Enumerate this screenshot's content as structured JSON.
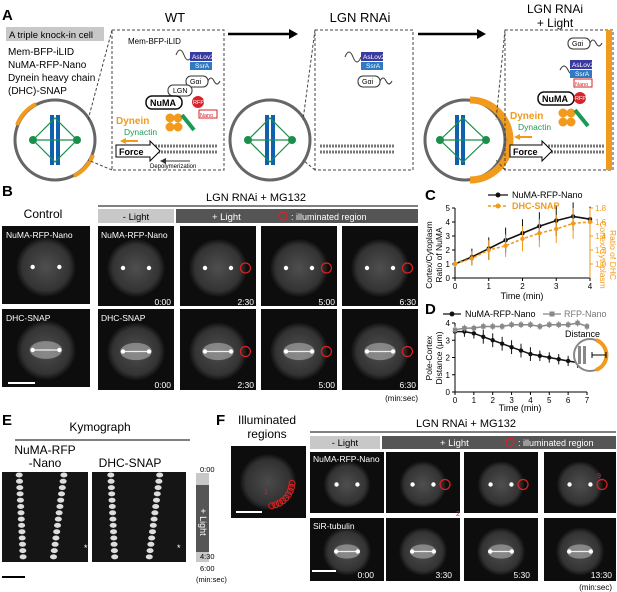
{
  "panelA": {
    "letter": "A",
    "box_title": "A triple knock-in cell",
    "lines": [
      "Mem-BFP-iLID",
      "NuMA-RFP-Nano",
      "Dynein heavy chain",
      "(DHC)-SNAP"
    ],
    "wt_title": "WT",
    "rnai_title": "LGN RNAi",
    "light_title": [
      "LGN RNAi",
      "+ Light"
    ],
    "mem": "Mem-BFP-iLID",
    "aslov2": "AsLov2",
    "ssra": "SsrA",
    "gai": "Gαi",
    "lgn": "LGN",
    "numa": "NuMA",
    "rfp": "RFP",
    "nano": "Nano",
    "dynein": "Dynein",
    "dynactin": "Dynactin",
    "force": "Force",
    "depol": "Depolymerization",
    "colors": {
      "dynein": "#f29a1c",
      "dynactin": "#1a9a55",
      "aslov2": "#3a3aa0",
      "ssra": "#2f7ac0",
      "rfp": "#d9222a",
      "spindle": "#1060b0",
      "chromo": "#1a8f4a"
    }
  },
  "panelB": {
    "letter": "B",
    "control": "Control",
    "header": "LGN RNAi + MG132",
    "minus_light": "- Light",
    "plus_light": "+ Light",
    "illum": ": illuminated region",
    "row1_label": "NuMA-RFP-Nano",
    "row2_label": "DHC-SNAP",
    "times": [
      "0:00",
      "2:30",
      "5:00",
      "6:30"
    ],
    "unit": "(min:sec)"
  },
  "panelC": {
    "letter": "C",
    "legend": [
      "NuMA-RFP-Nano",
      "DHC-SNAP"
    ],
    "ylabel_left": [
      "Cortex/Cytoplasm",
      "Ratio of NuMA"
    ],
    "ylabel_right": [
      "Cortex/Cytoplasm",
      "Ratio of DHC"
    ],
    "xlabel": "Time (min)"
  },
  "panelD": {
    "letter": "D",
    "legend": [
      "NuMA-RFP-Nano",
      "RFP-Nano"
    ],
    "ylabel": [
      "Pole-Cortex",
      "Distance (μm)"
    ],
    "xlabel": "Time (min)",
    "distance": "Distance"
  },
  "panelE": {
    "letter": "E",
    "title": "Kymograph",
    "label1": [
      "NuMA-RFP",
      "-Nano"
    ],
    "label2": "DHC-SNAP",
    "t_top": "0:00",
    "t_mid": "4:30",
    "t_bot": "6:00",
    "plus_light": "+ Light",
    "unit": "(min:sec)",
    "asterisk": "*"
  },
  "panelF": {
    "letter": "F",
    "illum_title": [
      "Illuminated",
      "regions"
    ],
    "header": "LGN RNAi + MG132",
    "minus_light": "- Light",
    "plus_light": "+ Light",
    "illum": ": illuminated region",
    "row1_label": "NuMA-RFP-Nano",
    "row2_label": "SiR-tubulin",
    "times": [
      "0:00",
      "3:30",
      "5:30",
      "13:30"
    ],
    "region_nums": [
      "1",
      "2",
      "9"
    ],
    "unit": "(min:sec)"
  },
  "chart_data": [
    {
      "type": "line",
      "panel": "C",
      "x": [
        0,
        0.5,
        1,
        1.5,
        2,
        2.5,
        3,
        3.5,
        4
      ],
      "xlim": [
        0,
        4
      ],
      "ylim_left": [
        0,
        5
      ],
      "yticks_left": [
        0,
        1,
        2,
        3,
        4,
        5
      ],
      "ylim_right": [
        0.8,
        1.8
      ],
      "yticks_right": [
        1.0,
        1.2,
        1.4,
        1.6,
        1.8
      ],
      "series": [
        {
          "name": "NuMA-RFP-Nano",
          "axis": "left",
          "color": "#111111",
          "values": [
            1.0,
            1.5,
            2.1,
            2.7,
            3.2,
            3.7,
            4.1,
            4.4,
            4.2
          ],
          "err": [
            0.2,
            0.6,
            0.8,
            0.9,
            1.0,
            1.0,
            1.1,
            1.0,
            0.9
          ]
        },
        {
          "name": "DHC-SNAP",
          "axis": "left",
          "color": "#f29a1c",
          "values": [
            1.0,
            1.4,
            2.0,
            2.3,
            2.8,
            3.2,
            3.5,
            3.9,
            4.0
          ],
          "err": [
            0.2,
            0.5,
            0.7,
            0.8,
            0.9,
            1.0,
            1.0,
            1.1,
            1.0
          ]
        }
      ]
    },
    {
      "type": "line",
      "panel": "D",
      "x": [
        0,
        0.5,
        1,
        1.5,
        2,
        2.5,
        3,
        3.5,
        4,
        4.5,
        5,
        5.5,
        6,
        6.5,
        7
      ],
      "xlim": [
        0,
        7
      ],
      "ylim": [
        0,
        4
      ],
      "yticks": [
        0,
        1,
        2,
        3,
        4
      ],
      "series": [
        {
          "name": "NuMA-RFP-Nano",
          "color": "#111111",
          "values": [
            3.5,
            3.5,
            3.4,
            3.2,
            3.0,
            2.8,
            2.6,
            2.4,
            2.2,
            2.1,
            2.0,
            1.9,
            1.8,
            1.7,
            1.6
          ],
          "err": [
            0.3,
            0.3,
            0.3,
            0.4,
            0.4,
            0.4,
            0.4,
            0.4,
            0.4,
            0.3,
            0.3,
            0.3,
            0.3,
            0.3,
            0.2
          ]
        },
        {
          "name": "RFP-Nano",
          "color": "#888888",
          "values": [
            3.6,
            3.7,
            3.7,
            3.8,
            3.8,
            3.8,
            3.9,
            3.9,
            3.9,
            3.8,
            3.9,
            3.9,
            3.9,
            4.0,
            3.8
          ],
          "err": [
            0.2,
            0.2,
            0.2,
            0.2,
            0.2,
            0.2,
            0.2,
            0.2,
            0.2,
            0.2,
            0.2,
            0.2,
            0.2,
            0.2,
            0.2
          ]
        }
      ]
    }
  ]
}
